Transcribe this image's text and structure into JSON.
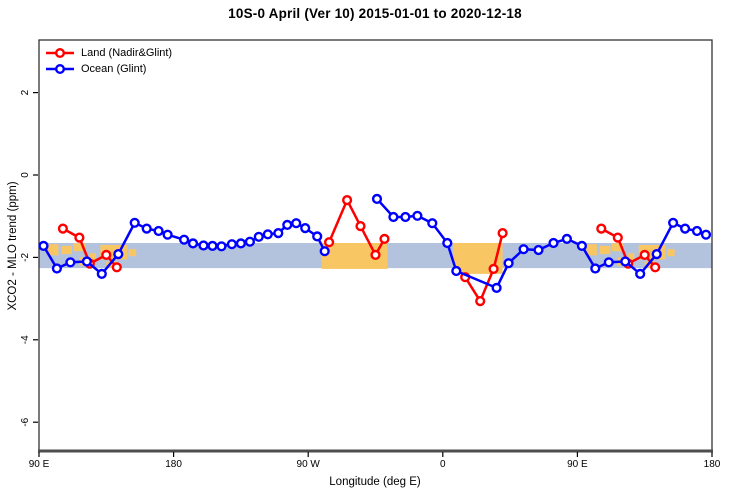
{
  "title": "10S-0 April (Ver 10)   2015-01-01 to 2020-12-18",
  "chart_data": {
    "type": "line",
    "title": "10S-0 April (Ver 10)   2015-01-01 to 2020-12-18",
    "xlabel": "Longitude (deg E)",
    "ylabel": "XCO2 - MLO trend (ppm)",
    "x_axis": {
      "note": "wrapped longitude axis: 90E → 180 → 90W → 0 → 90E → 180; positions stored as degrees east of Greenwich accumulated from 90 to 540",
      "range_deg": [
        90,
        540
      ],
      "ticks": [
        {
          "deg": 90,
          "label": "90 E"
        },
        {
          "deg": 180,
          "label": "180"
        },
        {
          "deg": 270,
          "label": "90 W"
        },
        {
          "deg": 360,
          "label": "0"
        },
        {
          "deg": 450,
          "label": "90 E"
        },
        {
          "deg": 540,
          "label": "180"
        }
      ]
    },
    "y_axis": {
      "ticks": [
        2,
        0,
        -2,
        -4,
        -6
      ],
      "range": [
        3.3,
        -6.7
      ],
      "grid": false
    },
    "legend": {
      "position": "top-left",
      "entries": [
        {
          "name": "Land (Nadir&Glint)",
          "color": "#ff0000",
          "marker": "open-circle"
        },
        {
          "name": "Ocean (Glint)",
          "color": "#0000ff",
          "marker": "open-circle"
        }
      ]
    },
    "bands": {
      "ocean_band": {
        "color": "#b3c3dd",
        "v_top": -1.65,
        "v_bottom": -2.26,
        "d0": 90,
        "d1": 540
      },
      "land_patches": [
        {
          "d0": 279,
          "d1": 323,
          "v_top": -1.65,
          "v_bottom": -2.28,
          "solid": true,
          "note": "South America"
        },
        {
          "d0": 367,
          "d1": 400,
          "v_top": -1.65,
          "v_bottom": -2.4,
          "solid": true,
          "note": "Africa"
        },
        {
          "d0": 96,
          "d1": 103,
          "v_top": -1.68,
          "v_bottom": -1.95,
          "solid": false
        },
        {
          "d0": 105,
          "d1": 112,
          "v_top": -1.72,
          "v_bottom": -1.92,
          "solid": false
        },
        {
          "d0": 113,
          "d1": 121,
          "v_top": -1.66,
          "v_bottom": -1.85,
          "solid": false
        },
        {
          "d0": 117,
          "d1": 122,
          "v_top": -2.0,
          "v_bottom": -2.2,
          "solid": false
        },
        {
          "d0": 124,
          "d1": 128,
          "v_top": -1.9,
          "v_bottom": -2.1,
          "solid": false
        },
        {
          "d0": 131,
          "d1": 149,
          "v_top": -1.7,
          "v_bottom": -2.05,
          "solid": false
        },
        {
          "d0": 135,
          "d1": 142,
          "v_top": -2.1,
          "v_bottom": -2.25,
          "solid": false
        },
        {
          "d0": 150,
          "d1": 155,
          "v_top": -1.8,
          "v_bottom": -1.97,
          "solid": false
        },
        {
          "d0": 456,
          "d1": 463,
          "v_top": -1.68,
          "v_bottom": -1.95,
          "solid": false
        },
        {
          "d0": 465,
          "d1": 472,
          "v_top": -1.72,
          "v_bottom": -1.92,
          "solid": false
        },
        {
          "d0": 473,
          "d1": 481,
          "v_top": -1.66,
          "v_bottom": -1.85,
          "solid": false
        },
        {
          "d0": 477,
          "d1": 482,
          "v_top": -2.0,
          "v_bottom": -2.2,
          "solid": false
        },
        {
          "d0": 484,
          "d1": 488,
          "v_top": -1.9,
          "v_bottom": -2.1,
          "solid": false
        },
        {
          "d0": 491,
          "d1": 509,
          "v_top": -1.7,
          "v_bottom": -2.05,
          "solid": false
        },
        {
          "d0": 495,
          "d1": 502,
          "v_top": -2.1,
          "v_bottom": -2.25,
          "solid": false
        },
        {
          "d0": 510,
          "d1": 515,
          "v_top": -1.8,
          "v_bottom": -1.97,
          "solid": false
        }
      ]
    },
    "series": [
      {
        "name": "Land (Nadir&Glint)",
        "color": "#ff0000",
        "segments": [
          [
            [
              106,
              -1.3
            ],
            [
              117,
              -1.52
            ],
            [
              124,
              -2.15
            ],
            [
              135,
              -1.94
            ],
            [
              142,
              -2.24
            ]
          ],
          [
            [
              284,
              -1.63
            ],
            [
              296,
              -0.61
            ],
            [
              305,
              -1.24
            ],
            [
              315,
              -1.94
            ],
            [
              321,
              -1.55
            ]
          ],
          [
            [
              375,
              -2.48
            ],
            [
              385,
              -3.06
            ],
            [
              394,
              -2.28
            ],
            [
              400,
              -1.41
            ]
          ],
          [
            [
              466,
              -1.3
            ],
            [
              477,
              -1.52
            ],
            [
              484,
              -2.15
            ],
            [
              495,
              -1.94
            ],
            [
              502,
              -2.24
            ]
          ]
        ]
      },
      {
        "name": "Ocean (Glint)",
        "color": "#0000ff",
        "segments": [
          [
            [
              93,
              -1.72
            ],
            [
              102,
              -2.27
            ],
            [
              111,
              -2.12
            ],
            [
              122,
              -2.1
            ],
            [
              132,
              -2.4
            ],
            [
              143,
              -1.92
            ],
            [
              154,
              -1.16
            ],
            [
              162,
              -1.3
            ],
            [
              170,
              -1.36
            ],
            [
              176,
              -1.45
            ],
            [
              187,
              -1.57
            ],
            [
              193,
              -1.66
            ],
            [
              200,
              -1.71
            ],
            [
              206,
              -1.72
            ],
            [
              212,
              -1.73
            ],
            [
              219,
              -1.68
            ],
            [
              225,
              -1.66
            ],
            [
              231,
              -1.62
            ],
            [
              237,
              -1.5
            ],
            [
              243,
              -1.44
            ],
            [
              250,
              -1.41
            ],
            [
              256,
              -1.21
            ],
            [
              262,
              -1.17
            ],
            [
              268,
              -1.29
            ],
            [
              276,
              -1.49
            ],
            [
              281,
              -1.85
            ]
          ],
          [
            [
              316,
              -0.58
            ],
            [
              327,
              -1.02
            ],
            [
              335,
              -1.02
            ],
            [
              343,
              -0.99
            ],
            [
              353,
              -1.17
            ],
            [
              363,
              -1.65
            ],
            [
              369,
              -2.33
            ],
            [
              396,
              -2.74
            ],
            [
              404,
              -2.14
            ],
            [
              414,
              -1.8
            ],
            [
              424,
              -1.82
            ],
            [
              434,
              -1.65
            ],
            [
              443,
              -1.55
            ],
            [
              453,
              -1.72
            ],
            [
              462,
              -2.27
            ],
            [
              471,
              -2.12
            ],
            [
              482,
              -2.1
            ],
            [
              492,
              -2.4
            ],
            [
              503,
              -1.92
            ],
            [
              514,
              -1.16
            ],
            [
              522,
              -1.3
            ],
            [
              530,
              -1.36
            ],
            [
              536,
              -1.45
            ]
          ]
        ]
      }
    ]
  }
}
